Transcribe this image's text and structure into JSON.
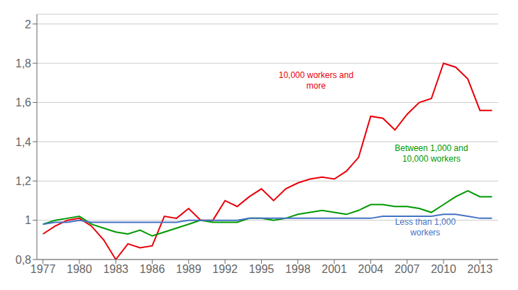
{
  "chart_data": {
    "type": "line",
    "x": [
      1977,
      1978,
      1979,
      1980,
      1981,
      1982,
      1983,
      1984,
      1985,
      1986,
      1987,
      1988,
      1989,
      1990,
      1991,
      1992,
      1993,
      1994,
      1995,
      1996,
      1997,
      1998,
      1999,
      2000,
      2001,
      2002,
      2003,
      2004,
      2005,
      2006,
      2007,
      2008,
      2009,
      2010,
      2011,
      2012,
      2013,
      2014
    ],
    "series": [
      {
        "color": "#e8000a",
        "values": [
          0.93,
          0.97,
          1.0,
          1.01,
          0.97,
          0.9,
          0.8,
          0.88,
          0.86,
          0.87,
          1.02,
          1.01,
          1.06,
          1.0,
          1.0,
          1.1,
          1.07,
          1.12,
          1.16,
          1.1,
          1.16,
          1.19,
          1.21,
          1.22,
          1.21,
          1.25,
          1.32,
          1.53,
          1.52,
          1.46,
          1.54,
          1.6,
          1.62,
          1.8,
          1.78,
          1.72,
          1.56,
          1.56
        ]
      },
      {
        "color": "#009900",
        "values": [
          0.98,
          1.0,
          1.01,
          1.02,
          0.98,
          0.96,
          0.94,
          0.93,
          0.95,
          0.92,
          0.94,
          0.96,
          0.98,
          1.0,
          0.99,
          0.99,
          0.99,
          1.01,
          1.01,
          1.0,
          1.01,
          1.03,
          1.04,
          1.05,
          1.04,
          1.03,
          1.05,
          1.08,
          1.08,
          1.07,
          1.07,
          1.06,
          1.04,
          1.08,
          1.12,
          1.15,
          1.12,
          1.12
        ]
      },
      {
        "color": "#4472c4",
        "values": [
          0.98,
          0.99,
          0.99,
          1.0,
          0.99,
          0.99,
          0.99,
          0.99,
          0.99,
          0.99,
          0.99,
          0.99,
          1.0,
          1.0,
          1.0,
          1.0,
          1.0,
          1.01,
          1.01,
          1.01,
          1.01,
          1.01,
          1.01,
          1.01,
          1.01,
          1.01,
          1.01,
          1.01,
          1.02,
          1.02,
          1.02,
          1.02,
          1.02,
          1.03,
          1.03,
          1.02,
          1.01,
          1.01
        ]
      }
    ],
    "annotations": [
      {
        "text": "10,000 workers and\nmore",
        "x": 1999.5,
        "y": 1.655,
        "color": "#e8000a"
      },
      {
        "text": "Between 1,000 and\n10,000 workers",
        "x": 2009.0,
        "y": 1.285,
        "color": "#009900"
      },
      {
        "text": "Less than 1,000\nworkers",
        "x": 2008.5,
        "y": 0.908,
        "color": "#4472c4"
      }
    ],
    "xlim": [
      1976.5,
      2014.5
    ],
    "xticks": [
      1977,
      1980,
      1983,
      1986,
      1989,
      1992,
      1995,
      1998,
      2001,
      2004,
      2007,
      2010,
      2013
    ],
    "ylim": [
      0.8,
      2.05
    ],
    "yticks": [
      {
        "value": 0.8,
        "label": "0,8"
      },
      1,
      {
        "value": 1.2,
        "label": "1,2"
      },
      {
        "value": 1.4,
        "label": "1,4"
      },
      {
        "value": 1.6,
        "label": "1,6"
      },
      {
        "value": 1.8,
        "label": "1,8"
      },
      2
    ],
    "grid": "y"
  }
}
